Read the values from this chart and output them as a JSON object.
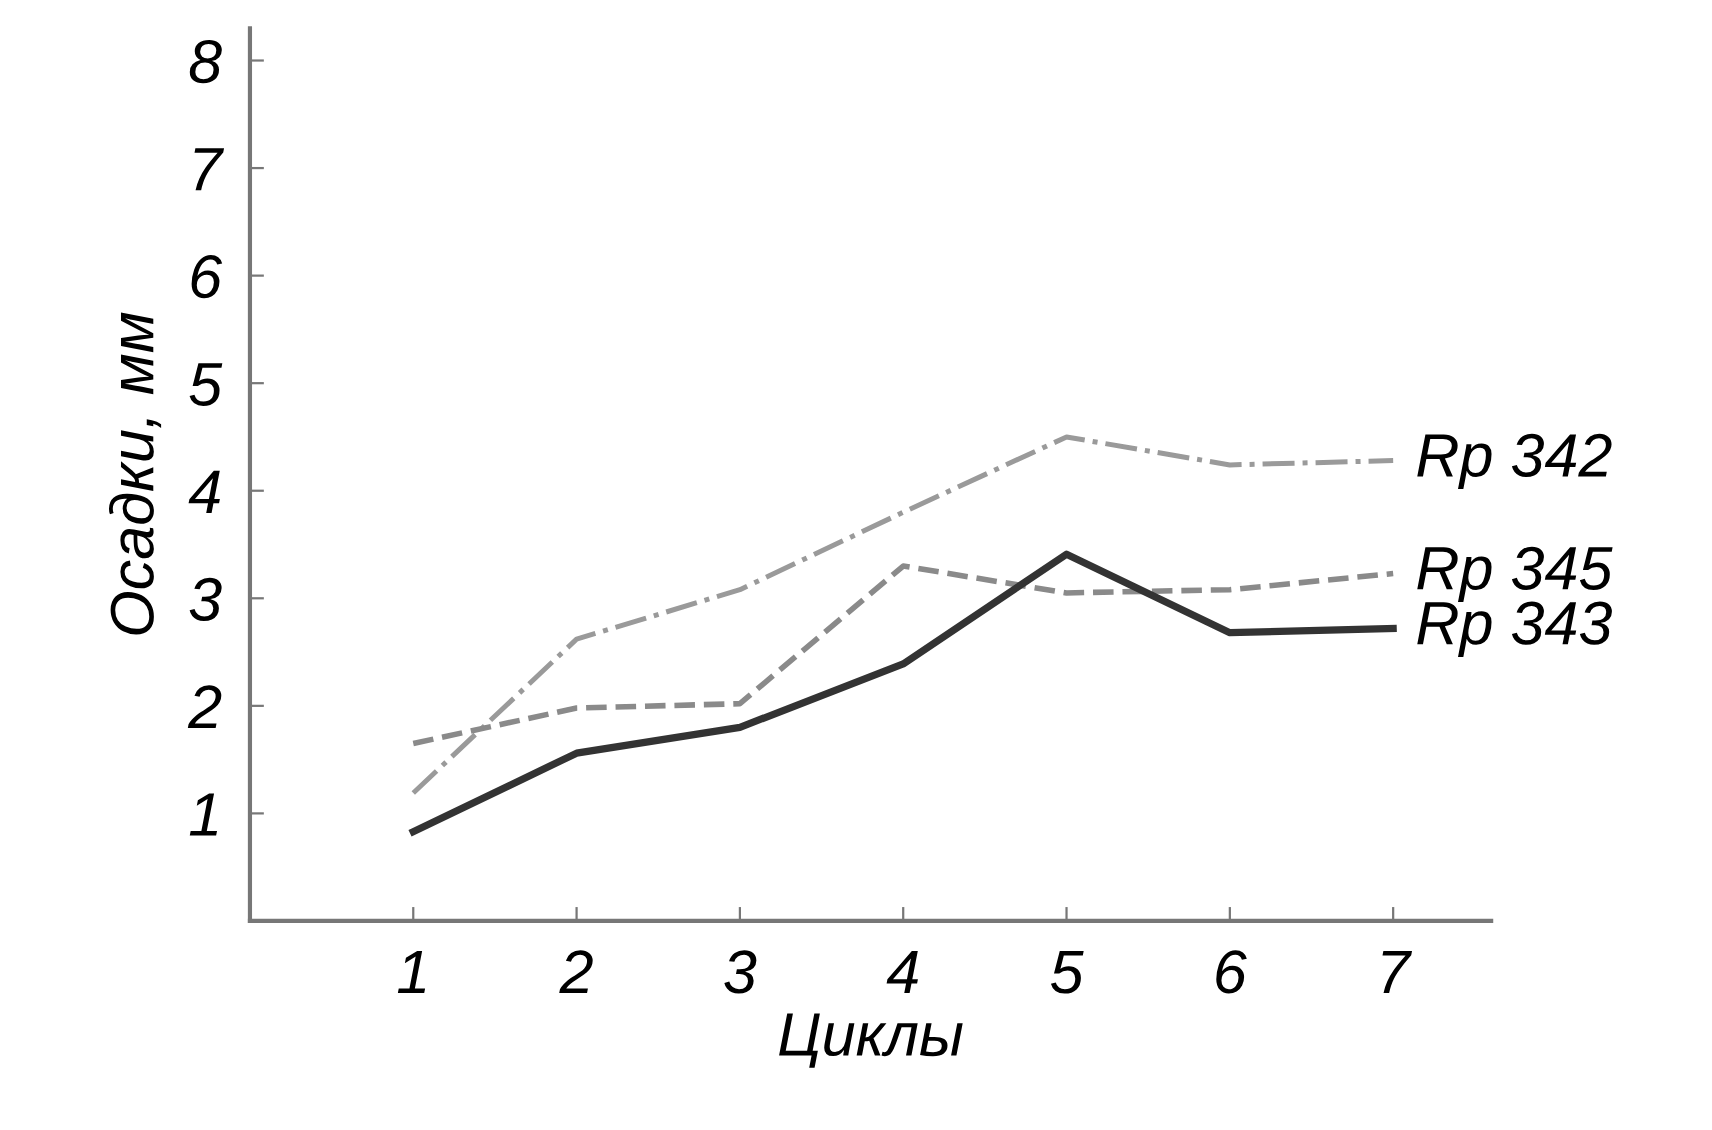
{
  "chart_data": {
    "type": "line",
    "xlabel": "Циклы",
    "ylabel": "Осадки, мм",
    "x": [
      1,
      2,
      3,
      4,
      5,
      6,
      7
    ],
    "xlim": [
      0,
      7.6
    ],
    "xticks": [
      1,
      2,
      3,
      4,
      5,
      6,
      7
    ],
    "ylim": [
      0,
      8.3
    ],
    "yticks": [
      1,
      2,
      3,
      4,
      5,
      6,
      7,
      8
    ],
    "grid": false,
    "legend": false,
    "marker": "none",
    "series": [
      {
        "name": "Rp 342",
        "color": "#9a9a9a",
        "line_style": "dashdot",
        "values": [
          1.19,
          2.62,
          3.08,
          3.8,
          4.5,
          4.24,
          4.28
        ]
      },
      {
        "name": "Rp 345",
        "color": "#8a8a8a",
        "line_style": "dashed",
        "values": [
          1.65,
          1.98,
          2.02,
          3.3,
          3.05,
          3.08,
          3.23
        ]
      },
      {
        "name": "Rp 343",
        "color": "#333333",
        "line_style": "solid",
        "values": [
          0.83,
          1.56,
          1.8,
          2.39,
          3.41,
          2.68,
          2.72
        ]
      }
    ]
  }
}
